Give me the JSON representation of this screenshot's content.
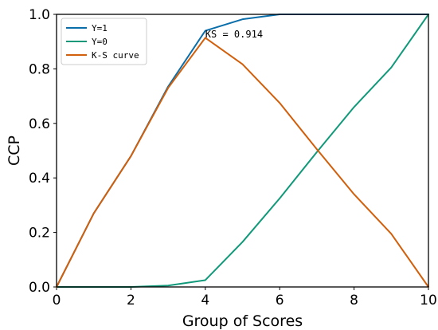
{
  "chart_data": {
    "type": "line",
    "xlabel": "Group of Scores",
    "ylabel": "CCP",
    "xlim": [
      0,
      10
    ],
    "ylim": [
      0,
      1.0
    ],
    "xticks": [
      "0",
      "2",
      "4",
      "6",
      "8",
      "10"
    ],
    "yticks": [
      "0.0",
      "0.2",
      "0.4",
      "0.6",
      "0.8",
      "1.0"
    ],
    "grid": false,
    "legend_position": "top-left",
    "series": [
      {
        "name": "Y=1",
        "color": "#0a6eaa",
        "x": [
          0,
          1,
          2,
          3,
          4,
          5,
          6,
          7,
          8,
          9,
          10
        ],
        "y": [
          0.0,
          0.27,
          0.48,
          0.735,
          0.94,
          0.982,
          1.0,
          1.0,
          1.0,
          1.0,
          1.0
        ]
      },
      {
        "name": "Y=0",
        "color": "#11997a",
        "x": [
          0,
          1,
          2,
          3,
          4,
          5,
          6,
          7,
          8,
          9,
          10
        ],
        "y": [
          0.0,
          0.0,
          0.0,
          0.005,
          0.025,
          0.165,
          0.325,
          0.495,
          0.66,
          0.805,
          1.0
        ]
      },
      {
        "name": "K-S curve",
        "color": "#d15f0b",
        "x": [
          0,
          1,
          2,
          3,
          4,
          5,
          6,
          7,
          8,
          9,
          10
        ],
        "y": [
          0.0,
          0.27,
          0.48,
          0.73,
          0.914,
          0.817,
          0.675,
          0.505,
          0.34,
          0.195,
          0.0
        ]
      }
    ],
    "annotations": [
      {
        "text": "KS = 0.914",
        "x": 4,
        "y": 0.914
      }
    ]
  }
}
